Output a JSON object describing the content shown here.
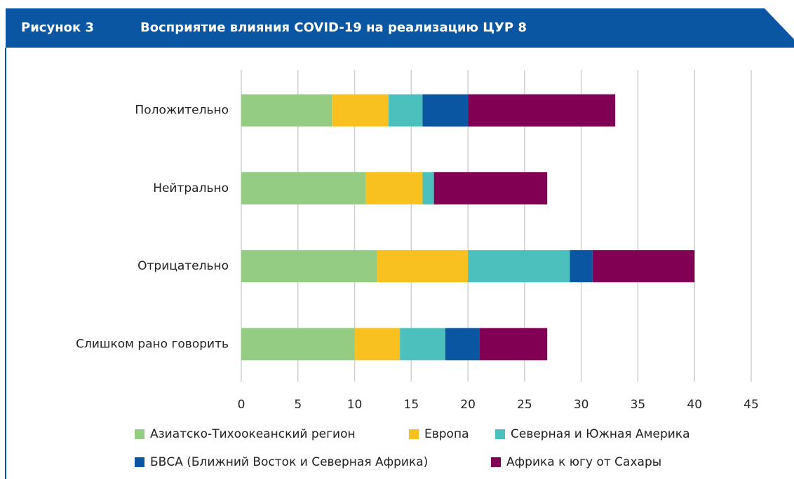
{
  "chart_data": {
    "type": "barh-stacked",
    "figure_label": "Рисунок 3",
    "title": "Восприятие влияния COVID-19 на реализацию ЦУР 8",
    "categories": [
      "Положительно",
      "Нейтрально",
      "Отрицательно",
      "Слишком рано говорить"
    ],
    "series": [
      {
        "name": "Азиатско-Тихоокеанский регион",
        "color": "#93cc82",
        "values": [
          8,
          11,
          12,
          10
        ]
      },
      {
        "name": "Европа",
        "color": "#f9c120",
        "values": [
          5,
          5,
          8,
          4
        ]
      },
      {
        "name": "Северная и Южная Америка",
        "color": "#4cc0bc",
        "values": [
          3,
          1,
          9,
          4
        ]
      },
      {
        "name": "БВСА (Ближний Восток и Северная Африка)",
        "color": "#0b56a3",
        "values": [
          4,
          0,
          2,
          3
        ]
      },
      {
        "name": "Африка к югу от Сахары",
        "color": "#820053",
        "values": [
          13,
          10,
          9,
          6
        ]
      }
    ],
    "xlim": [
      0,
      45
    ],
    "xticks": [
      0,
      5,
      10,
      15,
      20,
      25,
      30,
      35,
      40,
      45
    ],
    "grid": true
  }
}
